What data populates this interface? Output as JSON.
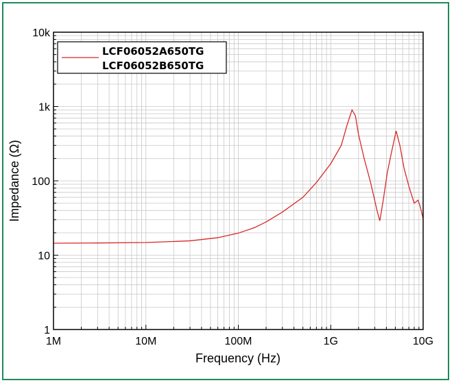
{
  "colors": {
    "frame": "#1b8a5a",
    "series_a": "#d62728",
    "grid": "#c8c8c8"
  },
  "chart_data": {
    "type": "line",
    "xscale": "log",
    "yscale": "log",
    "xlabel": "Frequency (Hz)",
    "ylabel": "Impedance (Ω)",
    "xlim": [
      1000000,
      10000000000
    ],
    "ylim": [
      1,
      10000
    ],
    "x_tick_labels": [
      "1M",
      "10M",
      "100M",
      "1G",
      "10G"
    ],
    "y_tick_labels": [
      "1",
      "10",
      "100",
      "1k",
      "10k"
    ],
    "grid": true,
    "legend_position": "top-left",
    "series": [
      {
        "name": "LCF06052A650TG",
        "color": "#d62728",
        "x": [
          1000000,
          3000000,
          10000000,
          30000000,
          60000000,
          100000000,
          150000000,
          200000000,
          300000000,
          500000000,
          700000000,
          1000000000,
          1300000000,
          1500000000,
          1700000000,
          1850000000,
          2000000000,
          2300000000,
          2700000000,
          3200000000,
          3400000000,
          3700000000,
          4100000000,
          4600000000,
          5100000000,
          5600000000,
          6200000000,
          7000000000,
          8000000000,
          8800000000,
          9300000000,
          10000000000
        ],
        "y": [
          14.5,
          14.6,
          14.8,
          15.6,
          17.2,
          19.8,
          23.5,
          28,
          38,
          60,
          95,
          170,
          300,
          560,
          900,
          750,
          420,
          200,
          95,
          38,
          29,
          55,
          130,
          260,
          470,
          300,
          150,
          85,
          50,
          55,
          45,
          31
        ]
      },
      {
        "name": "LCF06052B650TG",
        "color": "#d62728",
        "x": [],
        "y": []
      }
    ]
  }
}
